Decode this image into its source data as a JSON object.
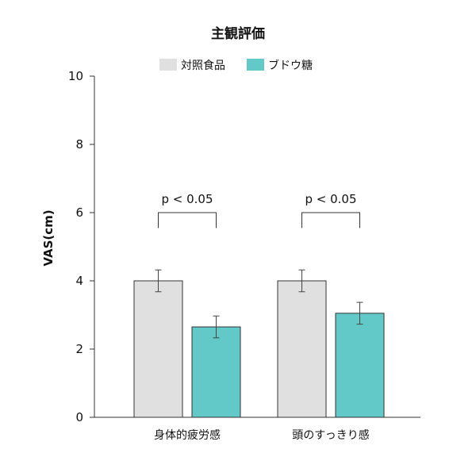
{
  "chart_data": {
    "type": "bar",
    "title": "主観評価",
    "xlabel": "",
    "ylabel": "VAS(cm)",
    "ylim": [
      0,
      10
    ],
    "yticks": [
      0,
      2,
      4,
      6,
      8,
      10
    ],
    "grid": false,
    "legend_position": "top-center",
    "categories": [
      "身体的疲労感",
      "頭のすっきり感"
    ],
    "series": [
      {
        "name": "対照食品",
        "color": "#e0e0e0",
        "values": [
          4.0,
          4.0
        ],
        "errors": [
          0.32,
          0.32
        ]
      },
      {
        "name": "ブドウ糖",
        "color": "#62c8c8",
        "values": [
          2.65,
          3.05
        ],
        "errors": [
          0.32,
          0.32
        ]
      }
    ],
    "annotations": [
      {
        "category_index": 0,
        "text": "p < 0.05",
        "bracket_y": 6.0,
        "bracket_drop": 0.45
      },
      {
        "category_index": 1,
        "text": "p < 0.05",
        "bracket_y": 6.0,
        "bracket_drop": 0.45
      }
    ]
  }
}
